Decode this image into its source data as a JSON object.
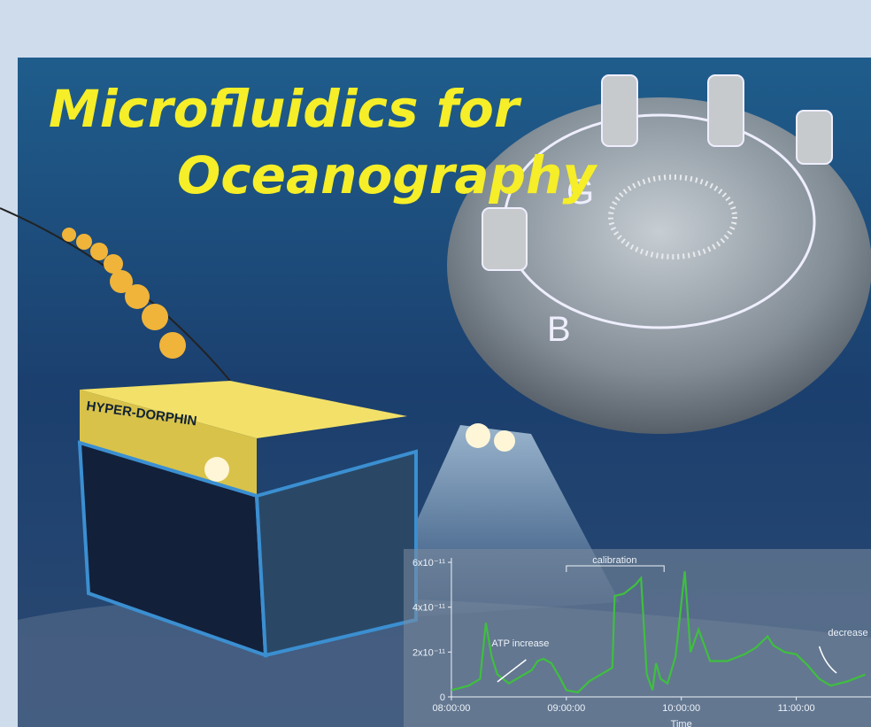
{
  "cover": {
    "title_lines": [
      "Microfluidics for",
      "Oceanography"
    ],
    "vehicle_label": "HYPER-DORPHIN",
    "disc_letters": [
      "G",
      "B"
    ]
  },
  "chart_data": {
    "type": "line",
    "x_label": "Time",
    "color": "#3fbf3f",
    "x": [
      8.0,
      8.15,
      8.25,
      8.3,
      8.35,
      8.4,
      8.5,
      8.6,
      8.7,
      8.75,
      8.8,
      8.87,
      8.95,
      9.0,
      9.1,
      9.2,
      9.3,
      9.4,
      9.42,
      9.5,
      9.6,
      9.65,
      9.7,
      9.75,
      9.78,
      9.82,
      9.88,
      9.95,
      10.03,
      10.08,
      10.15,
      10.25,
      10.4,
      10.55,
      10.65,
      10.75,
      10.8,
      10.9,
      11.0,
      11.1,
      11.2,
      11.3,
      11.45,
      11.6
    ],
    "series": [
      {
        "name": "ATP",
        "values": [
          3e-12,
          5e-12,
          8e-12,
          3.3e-11,
          1.8e-11,
          1e-11,
          6e-12,
          9e-12,
          1.2e-11,
          1.6e-11,
          1.7e-11,
          1.5e-11,
          8e-12,
          3e-12,
          2e-12,
          7e-12,
          1e-11,
          1.3e-11,
          4.5e-11,
          4.6e-11,
          5e-11,
          5.3e-11,
          1e-11,
          3e-12,
          1.5e-11,
          8e-12,
          6e-12,
          1.8e-11,
          5.6e-11,
          2e-11,
          3e-11,
          1.6e-11,
          1.6e-11,
          1.9e-11,
          2.2e-11,
          2.7e-11,
          2.3e-11,
          2e-11,
          1.9e-11,
          1.4e-11,
          8e-12,
          5e-12,
          7e-12,
          1e-11
        ]
      }
    ],
    "xlim": [
      7.6,
      11.65
    ],
    "ylim": [
      0,
      6.2e-11
    ],
    "xticks": [
      {
        "value": 8,
        "label": "08:00:00"
      },
      {
        "value": 9,
        "label": "09:00:00"
      },
      {
        "value": 10,
        "label": "10:00:00"
      },
      {
        "value": 11,
        "label": "11:00:00"
      }
    ],
    "yticks": [
      0,
      {
        "value": 2e-11,
        "label": "2x10⁻¹¹"
      },
      {
        "value": 4e-11,
        "label": "4x10⁻¹¹"
      },
      {
        "value": 6e-11,
        "label": "6x10⁻¹¹"
      }
    ],
    "annotations": [
      "calibration",
      "ATP increase",
      "decrease"
    ]
  }
}
